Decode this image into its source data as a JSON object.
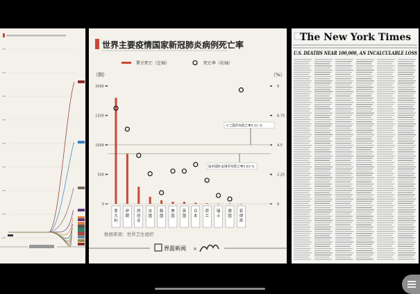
{
  "infographic": {
    "title": "世界主要疫情国家新冠肺炎病例死亡率",
    "legend": {
      "bar_label": "累计死亡（左轴）",
      "circle_label": "死亡率（右轴）"
    },
    "source": "数据来源：世界卫生组织",
    "footer": {
      "brand": "界面新闻",
      "separator": "×"
    },
    "colors": {
      "bar": "#c9473a",
      "accent": "#c9473a",
      "background": "#f3f1ea"
    }
  },
  "chart_data": {
    "type": "bar",
    "categories": [
      "意大利",
      "伊朗",
      "西班牙",
      "法国",
      "韩国",
      "美国",
      "英国",
      "日本",
      "荷兰",
      "瑞士",
      "德国",
      "菲律宾"
    ],
    "series": [
      {
        "name": "累计死亡（左轴）",
        "axis": "left",
        "type": "bar",
        "values": [
          1800,
          850,
          290,
          120,
          60,
          36,
          35,
          20,
          10,
          5,
          5,
          1
        ]
      },
      {
        "name": "死亡率（右轴）",
        "axis": "right",
        "type": "scatter",
        "values": [
          7.3,
          5.7,
          3.7,
          2.3,
          0.85,
          2.5,
          2.5,
          3.0,
          1.8,
          0.64,
          0.37,
          8.7
        ]
      }
    ],
    "left_axis": {
      "unit": "（例）",
      "ticks": [
        "0",
        "500",
        "1000",
        "1500",
        "2000"
      ],
      "range": [
        0,
        2000
      ]
    },
    "right_axis": {
      "unit": "（%）",
      "ticks": [
        "0",
        "2.25",
        "4.5",
        "6.75",
        "9"
      ],
      "range": [
        0,
        9
      ]
    },
    "reference_lines": [
      {
        "label": "十二国平均死亡率4.51 %",
        "value": 4.51
      },
      {
        "label": "除中国外全球平均死亡率3.83 %",
        "value": 3.83
      }
    ]
  },
  "newspaper": {
    "masthead": "The New York Times",
    "headline": "U.S. DEATHS NEAR 100,000, AN INCALCULABLE LOSS"
  }
}
